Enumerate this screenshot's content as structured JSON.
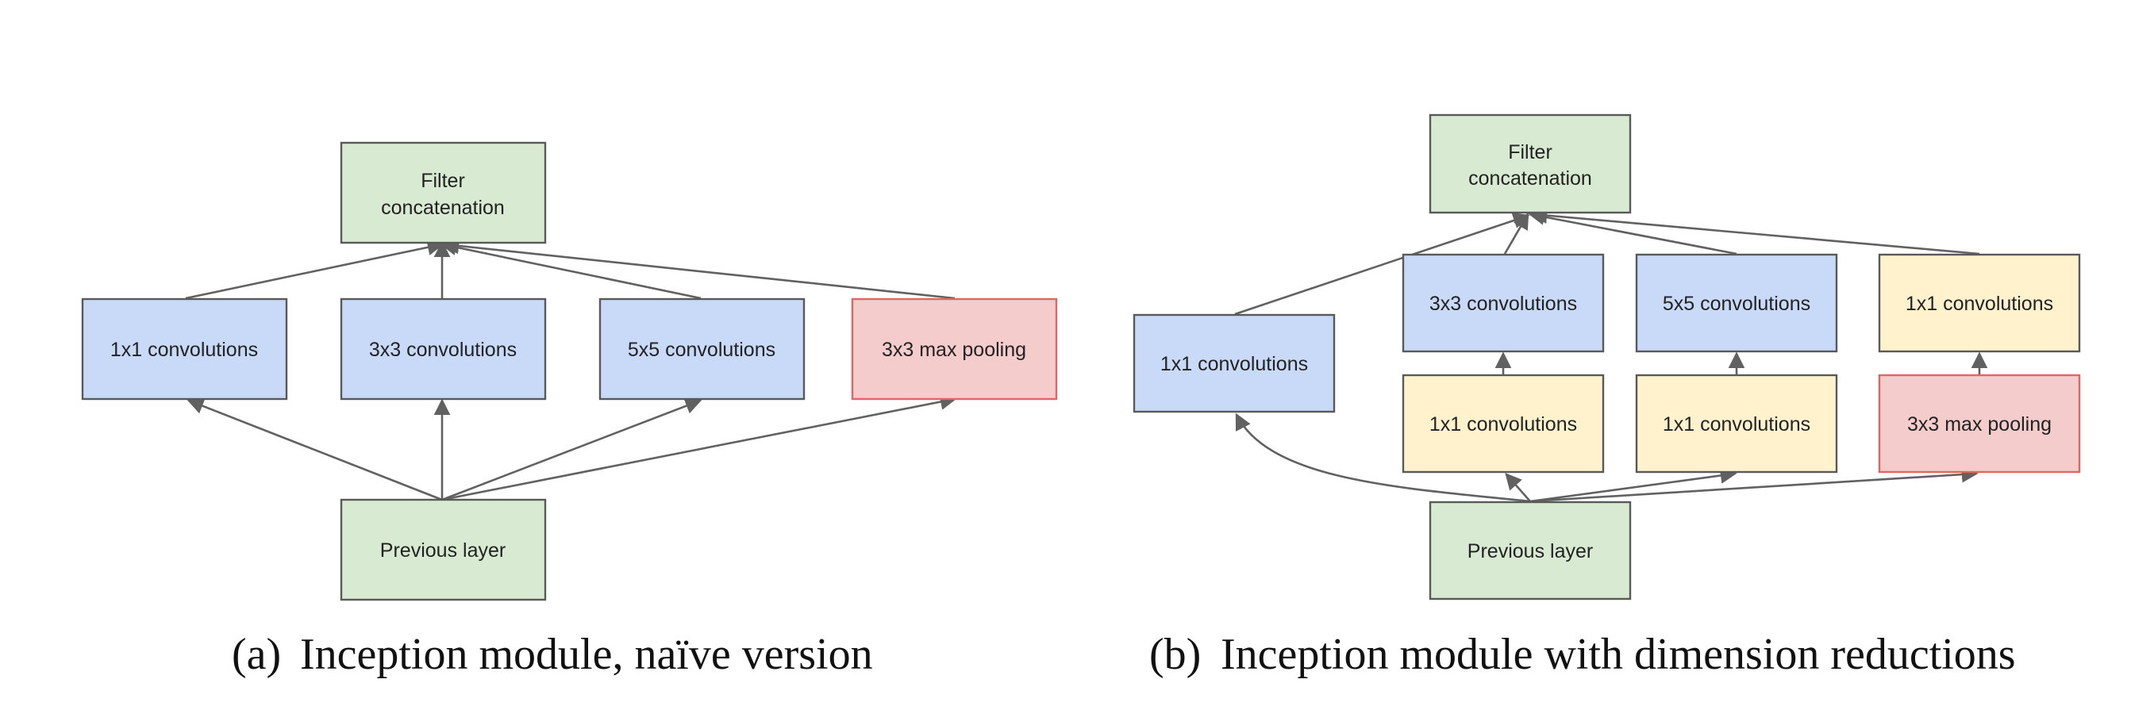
{
  "diagram_a": {
    "caption_tag": "(a)",
    "caption": "Inception module, naïve version",
    "nodes": {
      "filter_concat": {
        "line1": "Filter",
        "line2": "concatenation"
      },
      "conv1x1": "1x1 convolutions",
      "conv3x3": "3x3 convolutions",
      "conv5x5": "5x5 convolutions",
      "maxpool": "3x3 max pooling",
      "previous": "Previous layer"
    }
  },
  "diagram_b": {
    "caption_tag": "(b)",
    "caption": "Inception module with dimension reductions",
    "nodes": {
      "filter_concat": {
        "line1": "Filter",
        "line2": "concatenation"
      },
      "conv1x1_direct": "1x1 convolutions",
      "conv3x3": "3x3 convolutions",
      "conv5x5": "5x5 convolutions",
      "conv1x1_after_pool": "1x1 convolutions",
      "reduce_before_3x3": "1x1 convolutions",
      "reduce_before_5x5": "1x1 convolutions",
      "maxpool": "3x3 max pooling",
      "previous": "Previous layer"
    }
  },
  "colors": {
    "green_fill": "#d9ead3",
    "blue_fill": "#c9daf8",
    "yellow_fill": "#fff2cc",
    "red_fill": "#f4cccc",
    "red_stroke": "#e06666",
    "stroke": "#595959",
    "arrow": "#616161"
  }
}
